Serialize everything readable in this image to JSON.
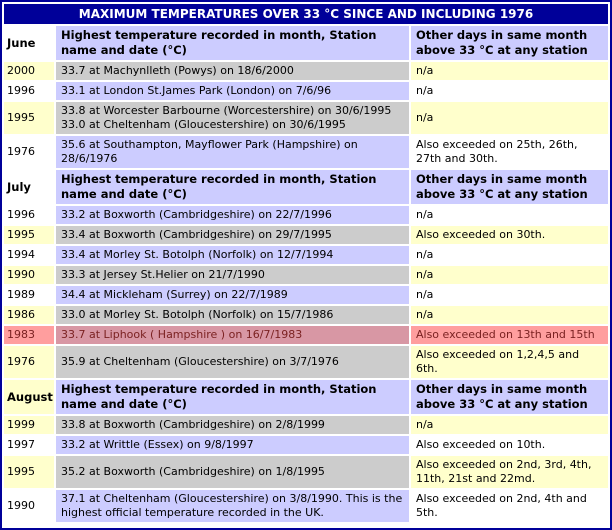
{
  "title": "MAXIMUM TEMPERATURES OVER 33 °C SINCE AND INCLUDING 1976",
  "column_headers": {
    "temp": "Highest temperature recorded in month, Station name and date (°C)",
    "other": "Other days in same month above 33 °C at any station"
  },
  "colors": {
    "title_bg": "#000099",
    "title_text": "#ffffff",
    "header_bg": "#ccccff",
    "grid_lines": "#ffffff",
    "scheme_A": {
      "year": "#ffffcc",
      "temp": "#cccccc",
      "other": "#ffffcc",
      "text": "#000000"
    },
    "scheme_B": {
      "year": "#ffffff",
      "temp": "#ccccff",
      "other": "#ffffff",
      "text": "#000000"
    },
    "scheme_highlight": {
      "year": "#ff9e9e",
      "temp": "#d897a4",
      "other": "#ff9e9e",
      "text": "#7b2222"
    }
  },
  "sections": [
    {
      "month": "June",
      "month_cell_bg": "#ffffff",
      "rows": [
        {
          "year": "2000",
          "temp": "33.7 at Machynlleth (Powys) on 18/6/2000",
          "other": "n/a",
          "scheme": "A"
        },
        {
          "year": "1996",
          "temp": "33.1 at London St.James Park (London) on 7/6/96",
          "other": "n/a",
          "scheme": "B"
        },
        {
          "year": "1995",
          "temp": "33.8 at Worcester Barbourne (Worcestershire) on 30/6/1995\n33.0 at Cheltenham (Gloucestershire) on 30/6/1995",
          "other": "n/a",
          "scheme": "A"
        },
        {
          "year": "1976",
          "temp": "35.6 at Southampton, Mayflower Park (Hampshire) on 28/6/1976",
          "other": "Also exceeded on 25th, 26th, 27th and 30th.",
          "scheme": "B"
        }
      ]
    },
    {
      "month": "July",
      "month_cell_bg": "#ffffff",
      "rows": [
        {
          "year": "1996",
          "temp": "33.2 at Boxworth (Cambridgeshire) on 22/7/1996",
          "other": "n/a",
          "scheme": "B"
        },
        {
          "year": "1995",
          "temp": "33.4 at Boxworth (Cambridgeshire) on 29/7/1995",
          "other": "Also exceeded on 30th.",
          "scheme": "A"
        },
        {
          "year": "1994",
          "temp": "33.4 at Morley St. Botolph (Norfolk) on 12/7/1994",
          "other": "n/a",
          "scheme": "B"
        },
        {
          "year": "1990",
          "temp": "33.3 at Jersey St.Helier on 21/7/1990",
          "other": "n/a",
          "scheme": "A"
        },
        {
          "year": "1989",
          "temp": "34.4 at Mickleham (Surrey) on 22/7/1989",
          "other": "n/a",
          "scheme": "B"
        },
        {
          "year": "1986",
          "temp": "33.0 at Morley St. Botolph (Norfolk) on 15/7/1986",
          "other": "n/a",
          "scheme": "A"
        },
        {
          "year": "1983",
          "temp": "33.7 at Liphook ( Hampshire ) on 16/7/1983",
          "other": "Also exceeded on 13th and 15th",
          "scheme": "highlight"
        },
        {
          "year": "1976",
          "temp": "35.9 at Cheltenham (Gloucestershire) on 3/7/1976",
          "other": "Also exceeded on 1,2,4,5 and 6th.",
          "scheme": "A"
        }
      ]
    },
    {
      "month": "August",
      "month_cell_bg": "#ffffcc",
      "rows": [
        {
          "year": "1999",
          "temp": "33.8 at Boxworth (Cambridgeshire) on 2/8/1999",
          "other": "n/a",
          "scheme": "A"
        },
        {
          "year": "1997",
          "temp": "33.2 at Writtle (Essex) on 9/8/1997",
          "other": "Also exceeded on 10th.",
          "scheme": "B"
        },
        {
          "year": "1995",
          "temp": "35.2 at Boxworth (Cambridgeshire) on 1/8/1995",
          "other": "Also exceeded on 2nd, 3rd, 4th, 11th, 21st and 22md.",
          "scheme": "A"
        },
        {
          "year": "1990",
          "temp": "37.1 at Cheltenham (Gloucestershire) on 3/8/1990. This is the highest official temperature recorded in the UK.",
          "other": "Also exceeded on 2nd, 4th and 5th.",
          "scheme": "B"
        }
      ]
    }
  ]
}
